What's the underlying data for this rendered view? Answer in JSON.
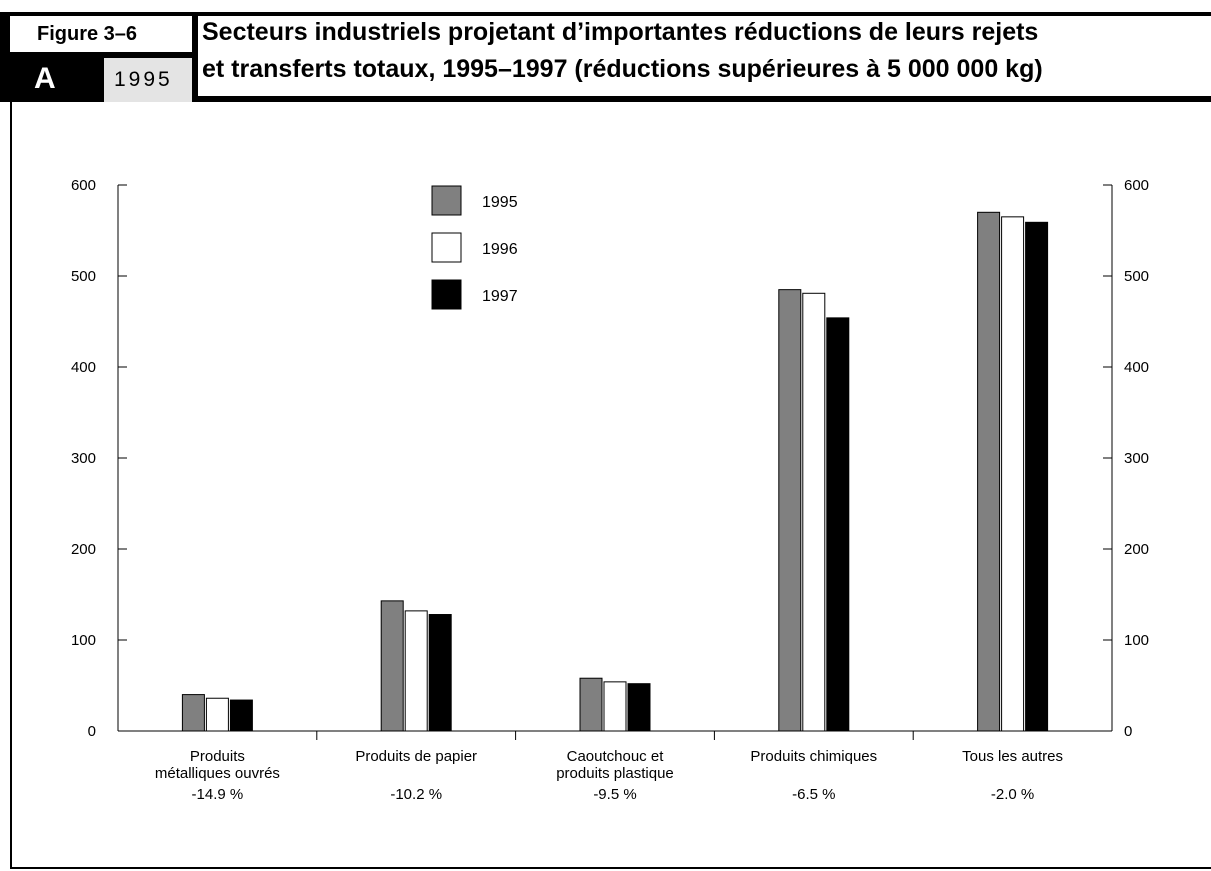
{
  "header": {
    "figure_label": "Figure 3–6",
    "letter": "A",
    "year": "1995",
    "title_line1": "Secteurs industriels projetant d’importantes réductions de leurs rejets",
    "title_line2": "et transferts totaux, 1995–1997 (réductions supérieures à 5 000 000 kg)"
  },
  "colors": {
    "series_1995": "#808080",
    "series_1996": "#ffffff",
    "series_1997": "#000000",
    "header_bg": "#000000",
    "year_box_bg": "#e4e4e4"
  },
  "chart_data": {
    "type": "bar",
    "categories": [
      [
        "Produits",
        "métalliques ouvrés"
      ],
      [
        "Produits de papier"
      ],
      [
        "Caoutchouc et",
        "produits plastique"
      ],
      [
        "Produits chimiques"
      ],
      [
        "Tous les autres"
      ]
    ],
    "category_changes": [
      "-14.9 %",
      "-10.2 %",
      "-9.5 %",
      "-6.5 %",
      "-2.0 %"
    ],
    "series": [
      {
        "name": "1995",
        "values": [
          40,
          143,
          58,
          485,
          570
        ]
      },
      {
        "name": "1996",
        "values": [
          36,
          132,
          54,
          481,
          565
        ]
      },
      {
        "name": "1997",
        "values": [
          34,
          128,
          52,
          454,
          559
        ]
      }
    ],
    "ylim": [
      0,
      600
    ],
    "yticks": [
      0,
      100,
      200,
      300,
      400,
      500,
      600
    ],
    "secondary_y_axis": true,
    "grid": false,
    "legend_position": "top-center"
  }
}
